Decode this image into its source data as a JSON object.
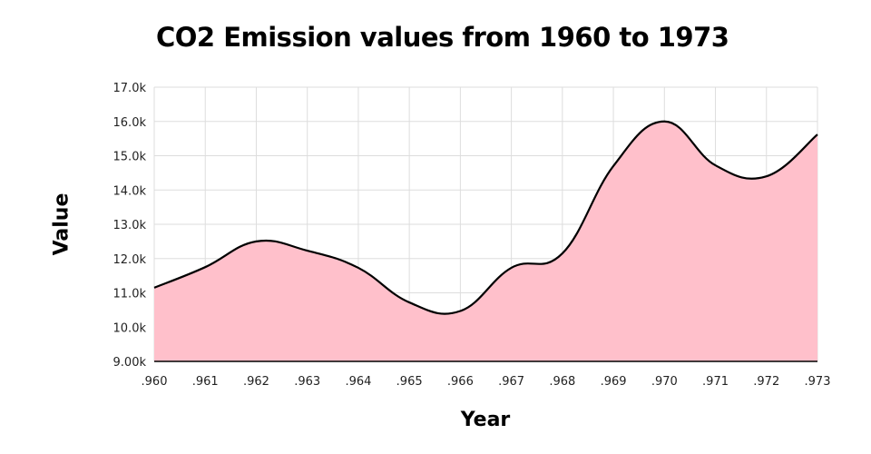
{
  "chart_data": {
    "type": "area",
    "title": "CO2 Emission values from 1960 to 1973",
    "xlabel": "Year",
    "ylabel": "Value",
    "x_tick_labels": [
      ".960",
      ".961",
      ".962",
      ".963",
      ".964",
      ".965",
      ".966",
      ".967",
      ".968",
      ".969",
      ".970",
      ".971",
      ".972",
      ".973"
    ],
    "y_tick_labels": [
      "9.00k",
      "10.0k",
      "11.0k",
      "12.0k",
      "13.0k",
      "14.0k",
      "15.0k",
      "16.0k",
      "17.0k"
    ],
    "y_ticks": [
      9000,
      10000,
      11000,
      12000,
      13000,
      14000,
      15000,
      16000,
      17000
    ],
    "ylim": [
      9000,
      17000
    ],
    "grid": true,
    "series": [
      {
        "name": "CO2 Emission",
        "x": [
          1960,
          1961,
          1962,
          1963,
          1964,
          1965,
          1966,
          1967,
          1968,
          1969,
          1970,
          1971,
          1972,
          1973
        ],
        "values": [
          11150,
          11750,
          12500,
          12230,
          11730,
          10720,
          10470,
          11730,
          12150,
          14700,
          16000,
          14720,
          14400,
          15620
        ],
        "fill_color": "#ffc0cb",
        "line_color": "#000000"
      }
    ]
  }
}
